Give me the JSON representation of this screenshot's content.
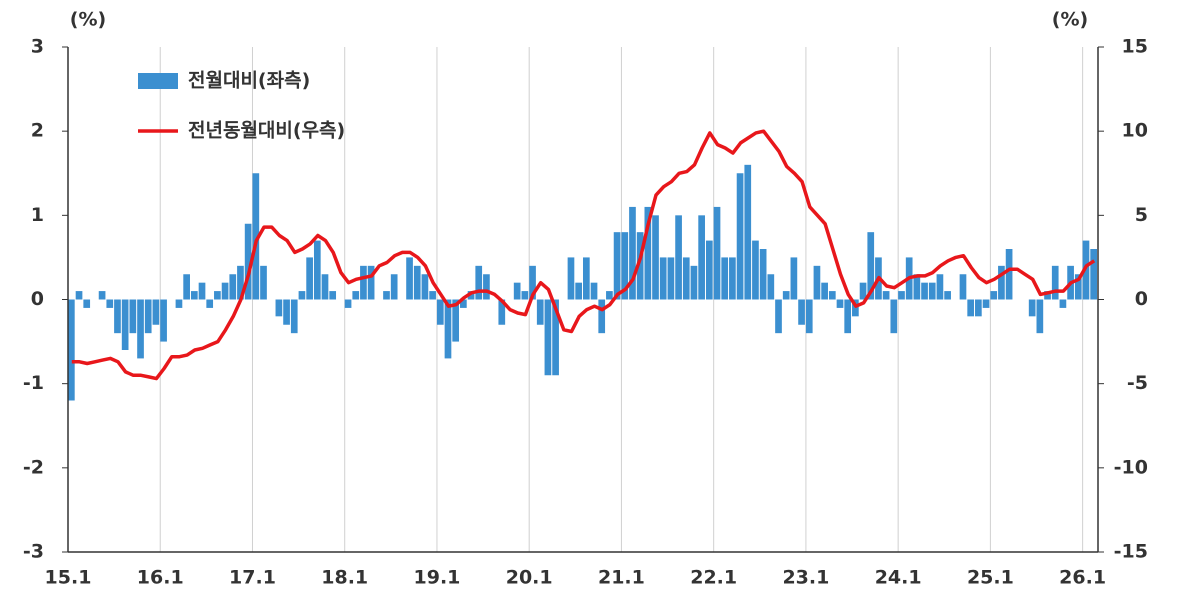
{
  "chart_data": {
    "type": "bar",
    "left_unit": "(%)",
    "right_unit": "(%)",
    "categories": [
      "15.1",
      null,
      null,
      null,
      null,
      null,
      null,
      null,
      null,
      null,
      null,
      null,
      "16.1",
      null,
      null,
      null,
      null,
      null,
      null,
      null,
      null,
      null,
      null,
      null,
      "17.1",
      null,
      null,
      null,
      null,
      null,
      null,
      null,
      null,
      null,
      null,
      null,
      "18.1",
      null,
      null,
      null,
      null,
      null,
      null,
      null,
      null,
      null,
      null,
      null,
      "19.1",
      null,
      null,
      null,
      null,
      null,
      null,
      null,
      null,
      null,
      null,
      null,
      "20.1",
      null,
      null,
      null,
      null,
      null,
      null,
      null,
      null,
      null,
      null,
      null,
      "21.1",
      null,
      null,
      null,
      null,
      null,
      null,
      null,
      null,
      null,
      null,
      null,
      "22.1",
      null,
      null,
      null,
      null,
      null,
      null,
      null,
      null,
      null,
      null,
      null,
      "23.1",
      null,
      null,
      null,
      null,
      null,
      null,
      null,
      null,
      null,
      null,
      null,
      "24.1",
      null,
      null,
      null,
      null,
      null,
      null,
      null,
      null,
      null,
      null,
      null,
      "25.1",
      null,
      null,
      null,
      null,
      null,
      null,
      null,
      null,
      null,
      null,
      null,
      "26.1",
      null
    ],
    "series": [
      {
        "name": "전월대비(좌측)",
        "type": "bar",
        "axis": "y",
        "color": "#3b8fd0",
        "values": [
          -1.2,
          0.1,
          -0.1,
          0,
          0.1,
          -0.1,
          -0.4,
          -0.6,
          -0.4,
          -0.7,
          -0.4,
          -0.3,
          -0.5,
          0,
          -0.1,
          0.3,
          0.1,
          0.2,
          -0.1,
          0.1,
          0.2,
          0.3,
          0.4,
          0.9,
          1.5,
          0.4,
          0,
          -0.2,
          -0.3,
          -0.4,
          0.1,
          0.5,
          0.7,
          0.3,
          0.1,
          0,
          -0.1,
          0.1,
          0.4,
          0.4,
          0,
          0.1,
          0.3,
          0,
          0.5,
          0.4,
          0.3,
          0.1,
          -0.3,
          -0.7,
          -0.5,
          -0.1,
          0.1,
          0.4,
          0.3,
          0,
          -0.3,
          0,
          0.2,
          0.1,
          0.4,
          -0.3,
          -0.9,
          -0.9,
          0,
          0.5,
          0.2,
          0.5,
          0.2,
          -0.4,
          0.1,
          0.8,
          0.8,
          1.1,
          0.8,
          1.1,
          1.0,
          0.5,
          0.5,
          1.0,
          0.5,
          0.4,
          1.0,
          0.7,
          1.1,
          0.5,
          0.5,
          1.5,
          1.6,
          0.7,
          0.6,
          0.3,
          -0.4,
          0.1,
          0.5,
          -0.3,
          -0.4,
          0.4,
          0.2,
          0.1,
          -0.1,
          -0.4,
          -0.2,
          0.2,
          0.8,
          0.5,
          0.1,
          -0.4,
          0.1,
          0.5,
          0.3,
          0.2,
          0.2,
          0.3,
          0.1,
          0,
          0.3,
          -0.2,
          -0.2,
          -0.1,
          0.1,
          0.4,
          0.6,
          0,
          0,
          -0.2,
          -0.4,
          0.1,
          0.4,
          -0.1,
          0.4,
          0.3,
          0.7,
          0.6
        ]
      },
      {
        "name": "전년동월대비(우측)",
        "type": "line",
        "axis": "y2",
        "color": "#e8171b",
        "values": [
          -3.7,
          -3.7,
          -3.8,
          -3.7,
          -3.6,
          -3.5,
          -3.7,
          -4.3,
          -4.5,
          -4.5,
          -4.6,
          -4.7,
          -4.1,
          -3.4,
          -3.4,
          -3.3,
          -3.0,
          -2.9,
          -2.7,
          -2.5,
          -1.8,
          -1.0,
          0,
          1.5,
          3.5,
          4.3,
          4.3,
          3.8,
          3.5,
          2.8,
          3.0,
          3.3,
          3.8,
          3.5,
          2.8,
          1.6,
          1.0,
          1.2,
          1.3,
          1.4,
          2.0,
          2.2,
          2.6,
          2.8,
          2.8,
          2.5,
          2.0,
          1.0,
          0.3,
          -0.4,
          -0.3,
          0.1,
          0.4,
          0.5,
          0.5,
          0.3,
          -0.1,
          -0.6,
          -0.8,
          -0.9,
          0.3,
          1.0,
          0.6,
          -0.6,
          -1.8,
          -1.9,
          -1.0,
          -0.6,
          -0.4,
          -0.6,
          -0.3,
          0.3,
          0.6,
          1.2,
          2.5,
          4.5,
          6.2,
          6.7,
          7.0,
          7.5,
          7.6,
          8.0,
          9.0,
          9.9,
          9.2,
          9.0,
          8.7,
          9.3,
          9.6,
          9.9,
          10.0,
          9.4,
          8.8,
          7.9,
          7.5,
          7.0,
          5.5,
          5.0,
          4.5,
          3.0,
          1.5,
          0.3,
          -0.4,
          -0.2,
          0.5,
          1.3,
          0.8,
          0.7,
          1.0,
          1.3,
          1.4,
          1.4,
          1.6,
          2.0,
          2.3,
          2.5,
          2.6,
          1.9,
          1.3,
          1.0,
          1.2,
          1.5,
          1.8,
          1.8,
          1.5,
          1.2,
          0.3,
          0.4,
          0.5,
          0.5,
          1.0,
          1.2,
          2.0,
          2.3
        ]
      }
    ],
    "ylim": [
      -3,
      3
    ],
    "yticks": [
      -3,
      -2,
      -1,
      0,
      1,
      2,
      3
    ],
    "y2lim": [
      -15,
      15
    ],
    "y2ticks": [
      -15,
      -10,
      -5,
      0,
      5,
      10,
      15
    ],
    "grid": true
  }
}
